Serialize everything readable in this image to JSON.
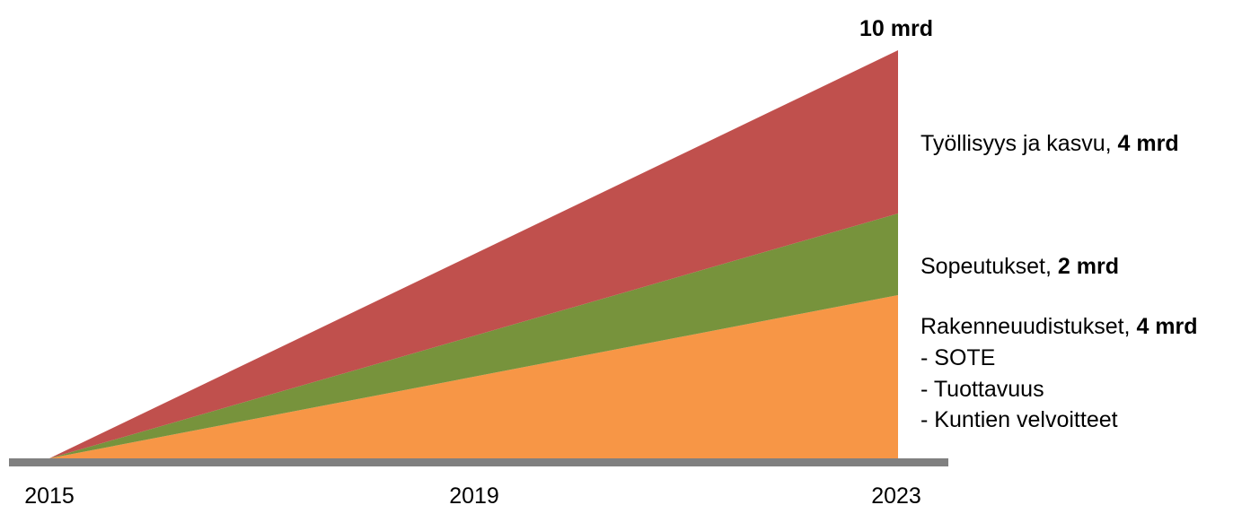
{
  "chart_data": {
    "type": "area",
    "stacked": true,
    "x": [
      "2015",
      "2019",
      "2023"
    ],
    "x_ticks": [
      "2015",
      "2019",
      "2023"
    ],
    "series": [
      {
        "name": "Rakenneuudistukset",
        "value_label": "4 mrd",
        "sub_items": [
          "- SOTE",
          "- Tuottavuus",
          "- Kuntien velvoitteet"
        ],
        "values": [
          0,
          2,
          4
        ],
        "color": "#f79646"
      },
      {
        "name": "Sopeutukset",
        "value_label": "2 mrd",
        "values": [
          0,
          1,
          2
        ],
        "color": "#77933c"
      },
      {
        "name": "Työllisyys ja kasvu",
        "value_label": "4 mrd",
        "values": [
          0,
          2,
          4
        ],
        "color": "#c0504d"
      }
    ],
    "total_label": "10 mrd",
    "ylim": [
      0,
      10
    ],
    "grid": false,
    "axis_color": "#808080"
  }
}
